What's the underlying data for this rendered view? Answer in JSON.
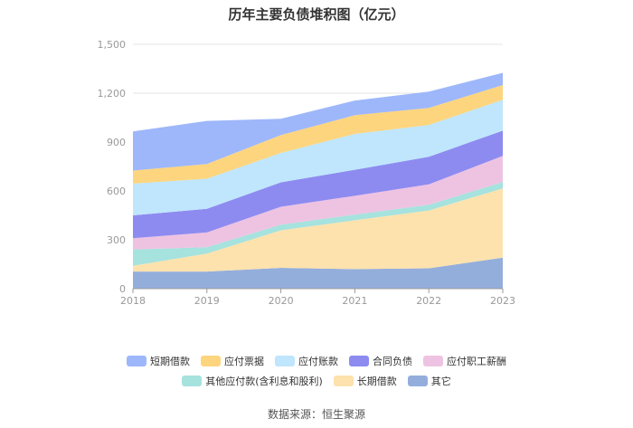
{
  "chart_data": {
    "type": "area",
    "stacked": true,
    "title": "历年主要负债堆积图（亿元）",
    "categories": [
      "2018",
      "2019",
      "2020",
      "2021",
      "2022",
      "2023"
    ],
    "ylim": [
      0,
      1500
    ],
    "yticks": [
      "0",
      "300",
      "600",
      "900",
      "1,200",
      "1,500"
    ],
    "grid": true,
    "legend_position": "bottom",
    "series": [
      {
        "name": "其它",
        "color": "#94aedc",
        "values": [
          105,
          105,
          128,
          120,
          125,
          190
        ]
      },
      {
        "name": "长期借款",
        "color": "#fde2ad",
        "values": [
          35,
          110,
          230,
          300,
          355,
          425
        ]
      },
      {
        "name": "其他应付款(含利息和股利)",
        "color": "#a6e2de",
        "values": [
          100,
          40,
          35,
          35,
          35,
          40
        ]
      },
      {
        "name": "应付职工薪酬",
        "color": "#eec3e2",
        "values": [
          70,
          90,
          110,
          115,
          125,
          160
        ]
      },
      {
        "name": "合同负债",
        "color": "#8d8bf0",
        "values": [
          140,
          145,
          150,
          160,
          170,
          155
        ]
      },
      {
        "name": "应付账款",
        "color": "#bfe6fc",
        "values": [
          195,
          185,
          180,
          220,
          195,
          190
        ]
      },
      {
        "name": "应付票据",
        "color": "#fdd57e",
        "values": [
          80,
          90,
          110,
          115,
          105,
          90
        ]
      },
      {
        "name": "短期借款",
        "color": "#9db7fa",
        "values": [
          240,
          265,
          100,
          90,
          100,
          75
        ]
      }
    ]
  },
  "legend_rows": [
    [
      "短期借款",
      "应付票据",
      "应付账款",
      "合同负债",
      "应付职工薪酬"
    ],
    [
      "其他应付款(含利息和股利)",
      "长期借款",
      "其它"
    ]
  ],
  "source": "数据来源：恒生聚源"
}
